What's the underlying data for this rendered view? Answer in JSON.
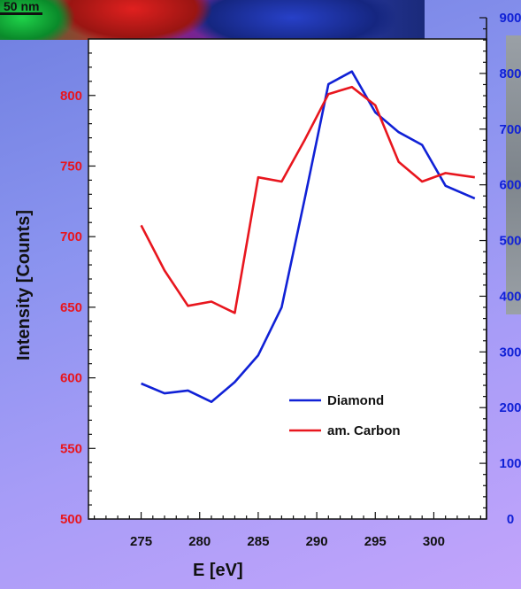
{
  "inset_label": "50 nm",
  "chart_data": {
    "type": "line",
    "xlabel": "E [eV]",
    "ylabel": "Intensity [Counts]",
    "xlim": [
      270.5,
      304.5
    ],
    "ylim": [
      500,
      840
    ],
    "y2lim": [
      0,
      900
    ],
    "x_ticks": [
      275,
      280,
      285,
      290,
      295,
      300
    ],
    "y_ticks": [
      500,
      550,
      600,
      650,
      700,
      750,
      800
    ],
    "y2_ticks": [
      0,
      100,
      200,
      300,
      400,
      500,
      600,
      700,
      800,
      900
    ],
    "legend_position": "lower-right",
    "colors": {
      "diamond": "#1021d6",
      "carbon": "#e8161e"
    },
    "series": [
      {
        "name": "Diamond",
        "axis": "left",
        "color": "#1021d6",
        "points": [
          [
            275,
            596
          ],
          [
            277,
            589
          ],
          [
            279,
            591
          ],
          [
            281,
            583
          ],
          [
            283,
            597
          ],
          [
            285,
            616
          ],
          [
            287,
            650
          ],
          [
            289,
            728
          ],
          [
            291,
            808
          ],
          [
            293,
            817
          ],
          [
            295,
            788
          ],
          [
            297,
            774
          ],
          [
            299,
            765
          ],
          [
            301,
            736
          ],
          [
            303.5,
            727
          ]
        ]
      },
      {
        "name": "am. Carbon",
        "axis": "left",
        "color": "#e8161e",
        "points": [
          [
            275,
            708
          ],
          [
            277,
            676
          ],
          [
            279,
            651
          ],
          [
            281,
            654
          ],
          [
            283,
            646
          ],
          [
            285,
            742
          ],
          [
            287,
            739
          ],
          [
            289,
            769
          ],
          [
            291,
            801
          ],
          [
            293,
            806
          ],
          [
            295,
            793
          ],
          [
            297,
            753
          ],
          [
            299,
            739
          ],
          [
            301,
            745
          ],
          [
            303.5,
            742
          ]
        ]
      }
    ]
  }
}
